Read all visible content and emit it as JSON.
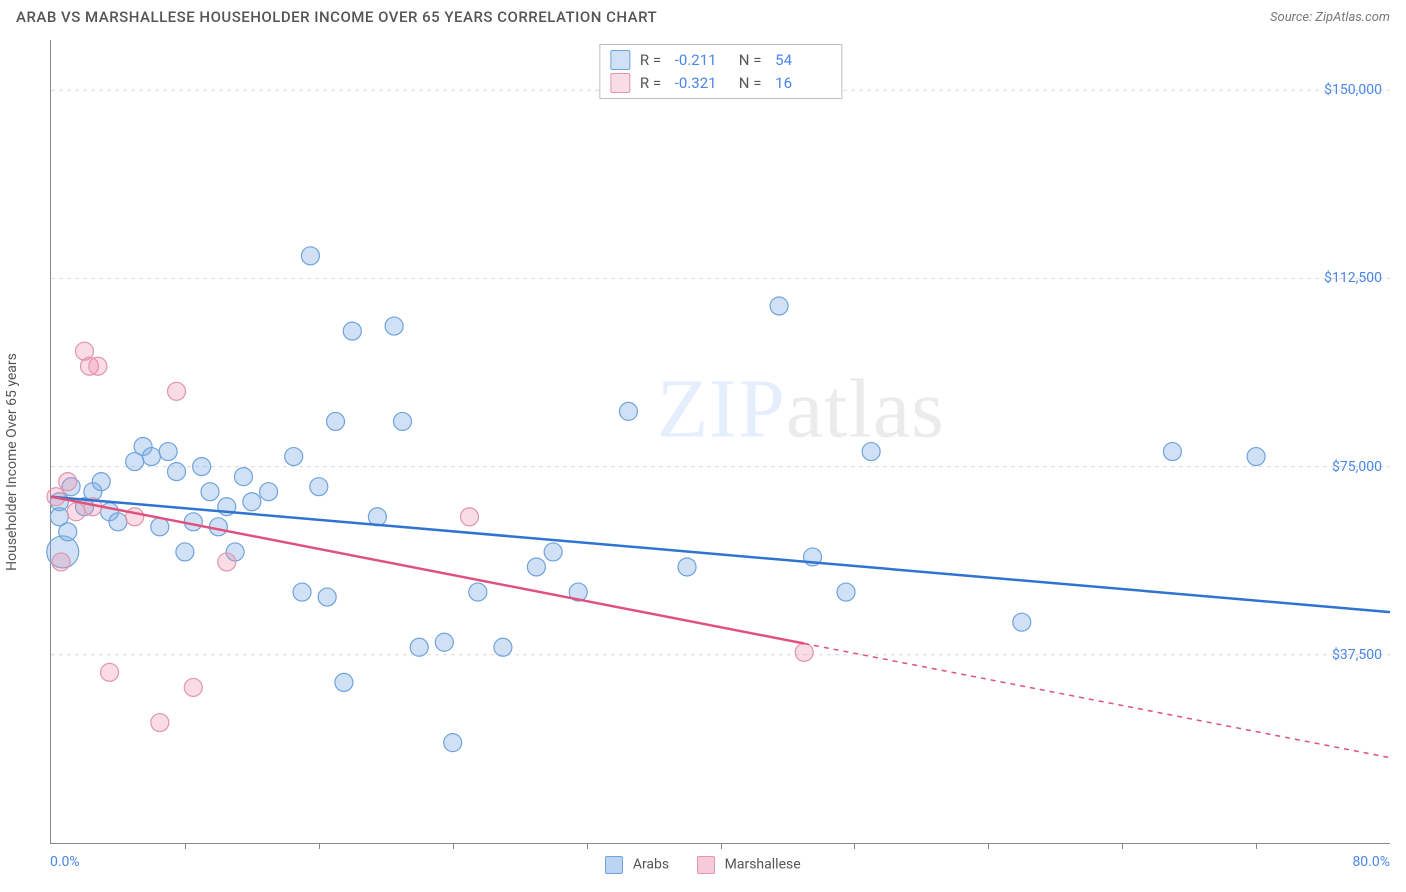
{
  "header": {
    "title": "ARAB VS MARSHALLESE HOUSEHOLDER INCOME OVER 65 YEARS CORRELATION CHART",
    "source": "Source: ZipAtlas.com"
  },
  "chart": {
    "type": "scatter",
    "xlim": [
      0,
      80
    ],
    "ylim": [
      0,
      160000
    ],
    "x_ticks": [
      8,
      16,
      24,
      32,
      40,
      48,
      56,
      64,
      72
    ],
    "y_gridlines": [
      37500,
      75000,
      112500,
      150000
    ],
    "y_tick_labels": [
      "$37,500",
      "$75,000",
      "$112,500",
      "$150,000"
    ],
    "x_min_label": "0.0%",
    "x_max_label": "80.0%",
    "ylabel": "Householder Income Over 65 years",
    "background_color": "#ffffff",
    "grid_color": "#d9d9d9",
    "axis_color": "#888888",
    "watermark": {
      "pre": "ZIP",
      "post": "atlas"
    },
    "series": [
      {
        "key": "arabs",
        "label": "Arabs",
        "fill": "rgba(120,170,230,0.35)",
        "stroke": "#6fa3db",
        "line_color": "#2f74d0",
        "r": "-0.211",
        "n": "54",
        "reg_y_at_x0": 69000,
        "reg_y_at_x80": 46000,
        "reg_dash_from_x": 80,
        "default_radius": 9,
        "points": [
          {
            "x": 0.5,
            "y": 68000
          },
          {
            "x": 0.5,
            "y": 65000
          },
          {
            "x": 0.7,
            "y": 58000,
            "r": 16
          },
          {
            "x": 1.0,
            "y": 62000
          },
          {
            "x": 1.2,
            "y": 71000
          },
          {
            "x": 2.0,
            "y": 67000
          },
          {
            "x": 2.5,
            "y": 70000
          },
          {
            "x": 3.0,
            "y": 72000
          },
          {
            "x": 3.5,
            "y": 66000
          },
          {
            "x": 4.0,
            "y": 64000
          },
          {
            "x": 5.0,
            "y": 76000
          },
          {
            "x": 5.5,
            "y": 79000
          },
          {
            "x": 6.0,
            "y": 77000
          },
          {
            "x": 6.5,
            "y": 63000
          },
          {
            "x": 7.0,
            "y": 78000
          },
          {
            "x": 7.5,
            "y": 74000
          },
          {
            "x": 8.0,
            "y": 58000
          },
          {
            "x": 8.5,
            "y": 64000
          },
          {
            "x": 9.0,
            "y": 75000
          },
          {
            "x": 9.5,
            "y": 70000
          },
          {
            "x": 10.0,
            "y": 63000
          },
          {
            "x": 10.5,
            "y": 67000
          },
          {
            "x": 11.0,
            "y": 58000
          },
          {
            "x": 11.5,
            "y": 73000
          },
          {
            "x": 12.0,
            "y": 68000
          },
          {
            "x": 13.0,
            "y": 70000
          },
          {
            "x": 14.5,
            "y": 77000
          },
          {
            "x": 15.0,
            "y": 50000
          },
          {
            "x": 15.5,
            "y": 117000
          },
          {
            "x": 16.0,
            "y": 71000
          },
          {
            "x": 16.5,
            "y": 49000
          },
          {
            "x": 17.0,
            "y": 84000
          },
          {
            "x": 17.5,
            "y": 32000
          },
          {
            "x": 18.0,
            "y": 102000
          },
          {
            "x": 19.5,
            "y": 65000
          },
          {
            "x": 20.5,
            "y": 103000
          },
          {
            "x": 21.0,
            "y": 84000
          },
          {
            "x": 22.0,
            "y": 39000
          },
          {
            "x": 24.0,
            "y": 20000
          },
          {
            "x": 23.5,
            "y": 40000
          },
          {
            "x": 25.5,
            "y": 50000
          },
          {
            "x": 27.0,
            "y": 39000
          },
          {
            "x": 29.0,
            "y": 55000
          },
          {
            "x": 30.0,
            "y": 58000
          },
          {
            "x": 31.5,
            "y": 50000
          },
          {
            "x": 34.5,
            "y": 86000
          },
          {
            "x": 38.0,
            "y": 55000
          },
          {
            "x": 43.5,
            "y": 107000
          },
          {
            "x": 45.5,
            "y": 57000
          },
          {
            "x": 47.5,
            "y": 50000
          },
          {
            "x": 49.0,
            "y": 78000
          },
          {
            "x": 58.0,
            "y": 44000
          },
          {
            "x": 67.0,
            "y": 78000
          },
          {
            "x": 72.0,
            "y": 77000
          }
        ]
      },
      {
        "key": "marshallese",
        "label": "Marshallese",
        "fill": "rgba(235,140,170,0.30)",
        "stroke": "#e295ad",
        "line_color": "#e1517e",
        "r": "-0.321",
        "n": "16",
        "reg_y_at_x0": 69000,
        "reg_y_at_x80": 17000,
        "reg_dash_from_x": 45,
        "default_radius": 9,
        "points": [
          {
            "x": 0.3,
            "y": 69000
          },
          {
            "x": 0.6,
            "y": 56000
          },
          {
            "x": 1.0,
            "y": 72000
          },
          {
            "x": 1.5,
            "y": 66000
          },
          {
            "x": 2.0,
            "y": 98000
          },
          {
            "x": 2.3,
            "y": 95000
          },
          {
            "x": 2.8,
            "y": 95000
          },
          {
            "x": 2.5,
            "y": 67000
          },
          {
            "x": 3.5,
            "y": 34000
          },
          {
            "x": 5.0,
            "y": 65000
          },
          {
            "x": 6.5,
            "y": 24000
          },
          {
            "x": 7.5,
            "y": 90000
          },
          {
            "x": 8.5,
            "y": 31000
          },
          {
            "x": 10.5,
            "y": 56000
          },
          {
            "x": 25.0,
            "y": 65000
          },
          {
            "x": 45.0,
            "y": 38000
          }
        ]
      }
    ],
    "bottom_legend": [
      {
        "label": "Arabs",
        "fill": "rgba(120,170,230,0.5)",
        "stroke": "#6fa3db"
      },
      {
        "label": "Marshallese",
        "fill": "rgba(235,140,170,0.45)",
        "stroke": "#e295ad"
      }
    ]
  }
}
